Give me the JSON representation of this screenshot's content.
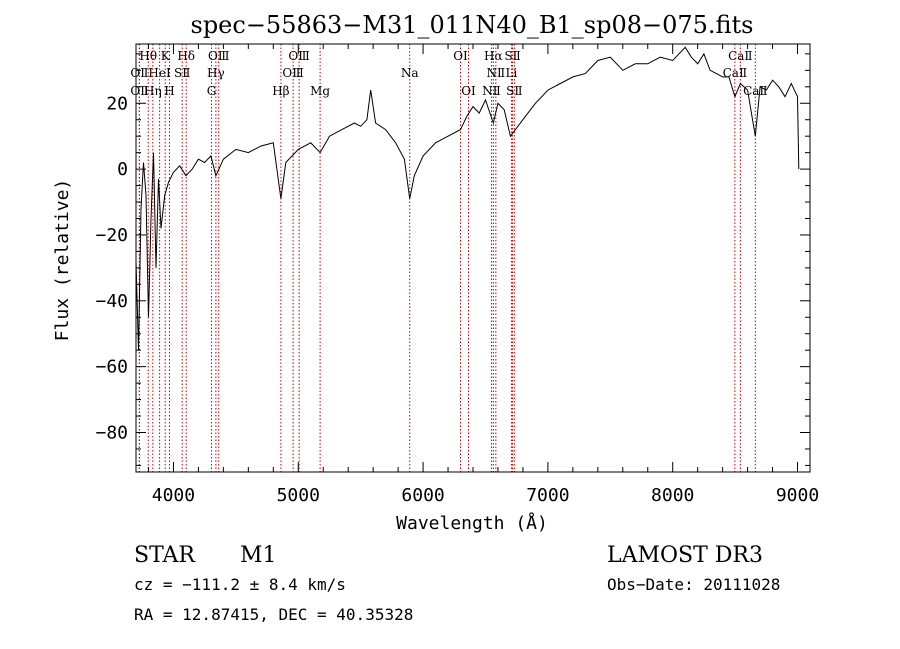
{
  "chart_data": {
    "type": "line",
    "title": "spec−55863−M31_011N40_B1_sp08−075.fits",
    "xlabel": "Wavelength (Å)",
    "ylabel": "Flux (relative)",
    "xlim": [
      3700,
      9100
    ],
    "ylim": [
      -92,
      38
    ],
    "xticks": [
      4000,
      5000,
      6000,
      7000,
      8000,
      9000
    ],
    "xtick_labels": [
      "4000",
      "5000",
      "6000",
      "7000",
      "8000",
      "9000"
    ],
    "yticks": [
      -80,
      -60,
      -40,
      -20,
      0,
      20
    ],
    "ytick_labels": [
      "−80",
      "−60",
      "−40",
      "−20",
      "0",
      "20"
    ],
    "grid": false,
    "series": [
      {
        "name": "spectrum",
        "x": [
          3700,
          3720,
          3740,
          3760,
          3780,
          3800,
          3820,
          3840,
          3860,
          3880,
          3900,
          3930,
          3960,
          4000,
          4050,
          4100,
          4150,
          4200,
          4250,
          4300,
          4340,
          4400,
          4500,
          4600,
          4700,
          4800,
          4861,
          4900,
          5000,
          5100,
          5175,
          5250,
          5350,
          5450,
          5500,
          5550,
          5580,
          5620,
          5700,
          5780,
          5850,
          5893,
          5930,
          6000,
          6100,
          6200,
          6300,
          6350,
          6400,
          6450,
          6500,
          6563,
          6600,
          6650,
          6700,
          6800,
          6900,
          7000,
          7100,
          7200,
          7300,
          7400,
          7500,
          7600,
          7700,
          7800,
          7900,
          8000,
          8100,
          8150,
          8200,
          8250,
          8300,
          8350,
          8400,
          8450,
          8498,
          8542,
          8600,
          8662,
          8700,
          8750,
          8800,
          8850,
          8900,
          8950,
          9000,
          9010
        ],
        "values": [
          -28,
          -55,
          -12,
          2,
          -8,
          -45,
          -15,
          5,
          -30,
          -3,
          -18,
          -8,
          -4,
          -1,
          1,
          -2,
          0,
          3,
          2,
          4,
          -2,
          3,
          6,
          5,
          7,
          8,
          -9,
          2,
          6,
          8,
          5,
          10,
          12,
          14,
          13,
          15,
          24,
          14,
          12,
          8,
          3,
          -9,
          -2,
          4,
          8,
          10,
          12,
          16,
          19,
          17,
          21,
          14,
          20,
          18,
          10,
          15,
          20,
          24,
          26,
          28,
          29,
          33,
          34,
          30,
          32,
          32,
          34,
          33,
          37,
          34,
          32,
          35,
          30,
          29,
          28,
          28,
          22,
          26,
          24,
          10,
          25,
          24,
          27,
          25,
          22,
          26,
          22,
          0
        ]
      }
    ],
    "line_markers": [
      {
        "label": "OⅡ",
        "wavelength": 3727,
        "row": 3
      },
      {
        "label": "Hθ",
        "wavelength": 3798,
        "row": 1
      },
      {
        "label": "OⅡ",
        "wavelength": 3727,
        "row": 2
      },
      {
        "label": "HeⅠ",
        "wavelength": 3889,
        "row": 2
      },
      {
        "label": "Hη",
        "wavelength": 3835,
        "row": 3
      },
      {
        "label": "K",
        "wavelength": 3934,
        "row": 1
      },
      {
        "label": "SⅡ",
        "wavelength": 4070,
        "row": 2
      },
      {
        "label": "H",
        "wavelength": 3968,
        "row": 3
      },
      {
        "label": "Hδ",
        "wavelength": 4102,
        "row": 1
      },
      {
        "label": "OⅢ",
        "wavelength": 4363,
        "row": 1
      },
      {
        "label": "Hγ",
        "wavelength": 4340,
        "row": 2
      },
      {
        "label": "G",
        "wavelength": 4305,
        "row": 3
      },
      {
        "label": "OⅢ",
        "wavelength": 5007,
        "row": 1
      },
      {
        "label": "OⅢ",
        "wavelength": 4959,
        "row": 2
      },
      {
        "label": "Hβ",
        "wavelength": 4861,
        "row": 3
      },
      {
        "label": "Mg",
        "wavelength": 5175,
        "row": 3
      },
      {
        "label": "Na",
        "wavelength": 5893,
        "row": 2
      },
      {
        "label": "OⅠ",
        "wavelength": 6300,
        "row": 1
      },
      {
        "label": "OⅠ",
        "wavelength": 6364,
        "row": 3
      },
      {
        "label": "Hα",
        "wavelength": 6563,
        "row": 1
      },
      {
        "label": "SⅡ",
        "wavelength": 6717,
        "row": 1
      },
      {
        "label": "NⅡ",
        "wavelength": 6583,
        "row": 2
      },
      {
        "label": "Li",
        "wavelength": 6708,
        "row": 2
      },
      {
        "label": "NⅡ",
        "wavelength": 6548,
        "row": 3
      },
      {
        "label": "SⅡ",
        "wavelength": 6731,
        "row": 3
      },
      {
        "label": "CaⅡ",
        "wavelength": 8542,
        "row": 1
      },
      {
        "label": "CaⅡ",
        "wavelength": 8498,
        "row": 2
      },
      {
        "label": "CaⅡ",
        "wavelength": 8662,
        "row": 3
      }
    ]
  },
  "info": {
    "object_class": "STAR",
    "subclass": "M1",
    "survey": "LAMOST DR3",
    "cz": "cz = −111.2 ± 8.4 km/s",
    "obs_date": "Obs−Date: 20111028",
    "coords": "RA =  12.87415, DEC =  40.35328"
  },
  "colors": {
    "line": "#000000",
    "marker": "#cc0000",
    "axes": "#000000",
    "background": "#ffffff"
  }
}
